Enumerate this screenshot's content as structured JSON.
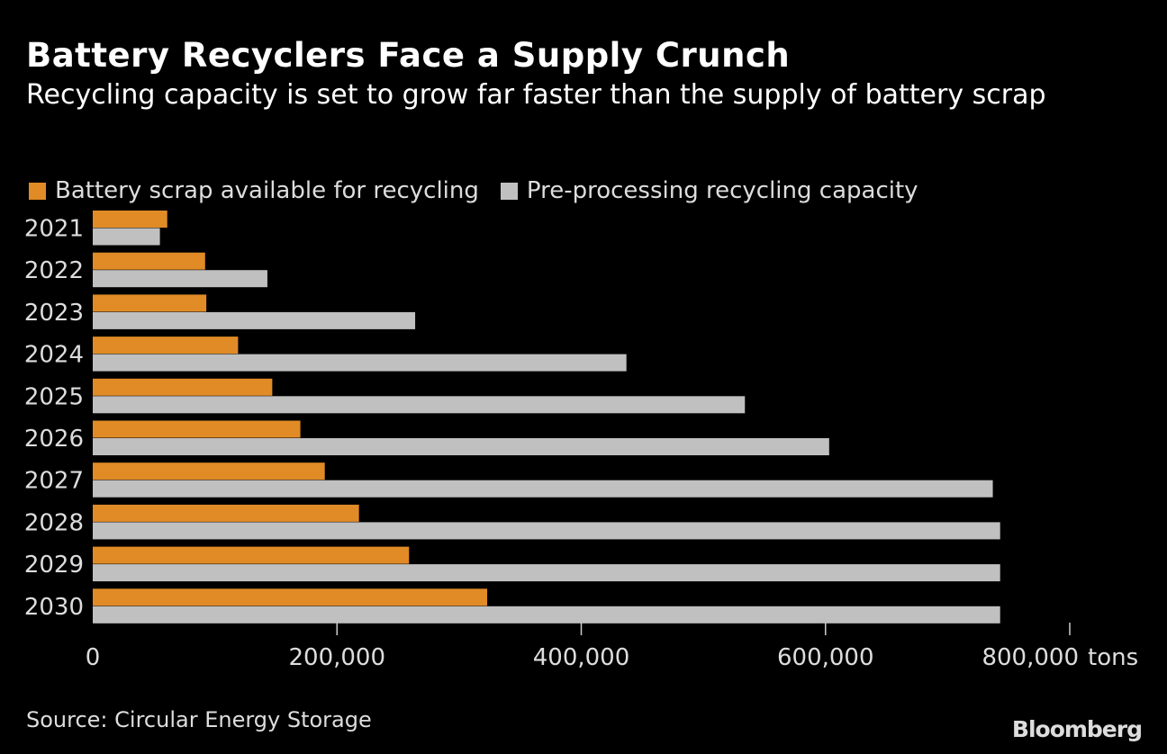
{
  "chart_data": {
    "type": "bar",
    "orientation": "horizontal",
    "title": "Battery Recyclers Face a Supply Crunch",
    "subtitle": "Recycling capacity is set to grow far faster than the supply of battery scrap",
    "categories": [
      "2021",
      "2022",
      "2023",
      "2024",
      "2025",
      "2026",
      "2027",
      "2028",
      "2029",
      "2030"
    ],
    "series": [
      {
        "name": "Battery scrap available for recycling",
        "color": "#e08b26",
        "values": [
          61000,
          92000,
          93000,
          119000,
          147000,
          170000,
          190000,
          218000,
          259000,
          323000
        ]
      },
      {
        "name": "Pre-processing recycling capacity",
        "color": "#c0c0c0",
        "values": [
          55000,
          143000,
          264000,
          437000,
          534000,
          603000,
          737000,
          743000,
          743000,
          743000
        ]
      }
    ],
    "xlim": [
      0,
      800000
    ],
    "xticks": [
      0,
      200000,
      400000,
      600000,
      800000
    ],
    "xtick_labels": [
      "0",
      "200,000",
      "400,000",
      "600,000",
      "800,000"
    ],
    "xunit": "tons",
    "legend": "top-left",
    "grid": false,
    "background": "#000000",
    "source": "Source: Circular Energy Storage",
    "logo": "Bloomberg"
  }
}
